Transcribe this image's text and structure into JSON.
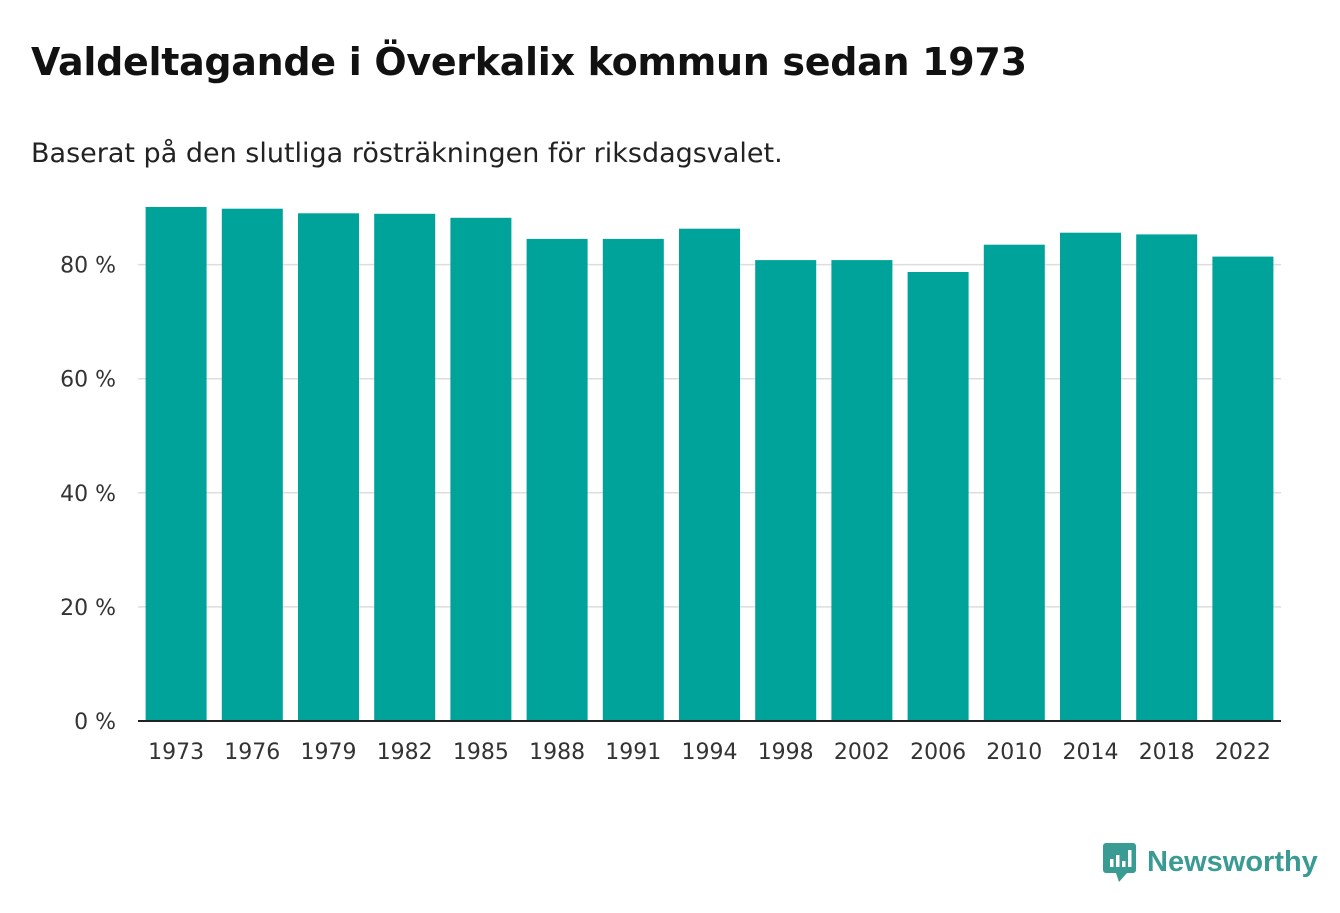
{
  "header": {
    "title": "Valdeltagande i Överkalix kommun sedan 1973",
    "subtitle": "Baserat på den slutliga rösträkningen för riksdagsvalet."
  },
  "brand": {
    "name": "Newsworthy",
    "icon": "chart-bubble-icon",
    "color": "#3a9a94"
  },
  "colors": {
    "bar": "#00a39a",
    "grid": "#dddddd",
    "axis": "#222222"
  },
  "chart_data": {
    "type": "bar",
    "title": "Valdeltagande i Överkalix kommun sedan 1973",
    "subtitle": "Baserat på den slutliga rösträkningen för riksdagsvalet.",
    "xlabel": "",
    "ylabel": "",
    "categories": [
      "1973",
      "1976",
      "1979",
      "1982",
      "1985",
      "1988",
      "1991",
      "1994",
      "1998",
      "2002",
      "2006",
      "2010",
      "2014",
      "2018",
      "2022"
    ],
    "values": [
      90.1,
      89.8,
      89.0,
      88.9,
      88.2,
      84.5,
      84.5,
      86.3,
      80.8,
      80.8,
      78.7,
      83.5,
      85.6,
      85.3,
      81.4
    ],
    "yticks": [
      0,
      20,
      40,
      60,
      80
    ],
    "ytick_labels": [
      "0 %",
      "20 %",
      "40 %",
      "60 %",
      "80 %"
    ],
    "ylim": [
      0,
      90.1
    ],
    "grid": true,
    "legend": "none"
  }
}
